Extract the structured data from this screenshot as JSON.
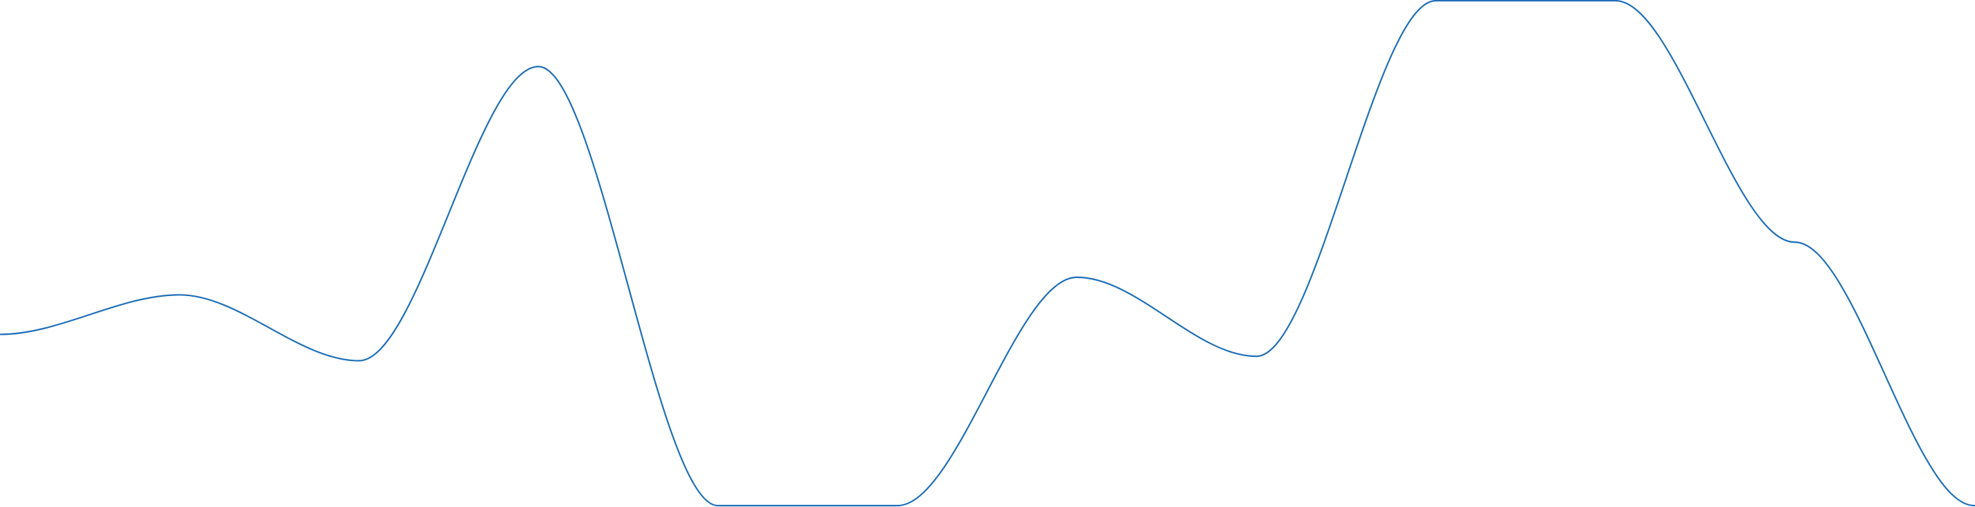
{
  "chart_data": {
    "type": "line",
    "title": "",
    "xlabel": "",
    "ylabel": "",
    "x": [
      0,
      1,
      2,
      3,
      4,
      5,
      6,
      7,
      8,
      9,
      10,
      11
    ],
    "series": [
      {
        "values": [
          0.24,
          0.33,
          0.18,
          0.85,
          -0.15,
          -0.15,
          0.37,
          0.19,
          1.0,
          1.0,
          0.45,
          -0.15
        ],
        "color": "#1f6fb8"
      }
    ],
    "curve": "smooth-monotone",
    "ylim": [
      -0.15,
      1.0
    ],
    "xlim": [
      0,
      11
    ],
    "grid": false,
    "legend": "none",
    "axes_visible": false
  }
}
